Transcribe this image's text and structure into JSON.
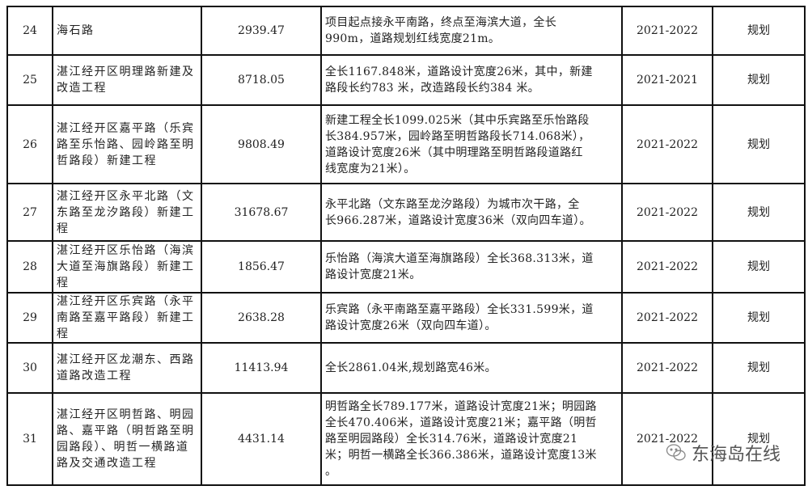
{
  "rows": [
    {
      "no": "24",
      "name": [
        "海石路"
      ],
      "amount": "2939.47",
      "desc": [
        "项目起点接永平南路，终点至海滨大道，全长",
        "990m，道路规划红线宽度21m。"
      ],
      "period": "2021-2022",
      "status": "规划"
    },
    {
      "no": "25",
      "name": [
        "湛江经开区明理路新建及",
        "改造工程"
      ],
      "amount": "8718.05",
      "desc": [
        "全长1167.848米，道路设计宽度26米，其中，新建",
        "路段长约783 米，改造路段长约384 米。"
      ],
      "period": "2021-2021",
      "status": "规划"
    },
    {
      "no": "26",
      "name": [
        "湛江经开区嘉平路（乐宾",
        "路至乐怡路、园岭路至明",
        "哲路段）新建工程"
      ],
      "amount": "9808.49",
      "desc": [
        "新建工程全长1099.025米（其中乐宾路至乐怡路段",
        "长384.957米，园岭路至明哲路段长714.068米），",
        "道路设计宽度26米（其中明理路至明哲路段道路红",
        "线宽度为21米）。"
      ],
      "period": "2021-2022",
      "status": "规划"
    },
    {
      "no": "27",
      "name": [
        "湛江经开区永平北路（文",
        "东路至龙汐路段）新建工",
        "程"
      ],
      "amount": "31678.67",
      "desc": [
        "永平北路（文东路至龙汐路段）为城市次干路，全",
        "长966.287米，道路设计宽度36米（双向四车道）。"
      ],
      "period": "2021-2022",
      "status": "规划"
    },
    {
      "no": "28",
      "name": [
        "湛江经开区乐怡路（海滨",
        "大道至海旗路段）新建工",
        "程"
      ],
      "amount": "1856.47",
      "desc": [
        "乐怡路（海滨大道至海旗路段）全长368.313米，道",
        "路设计宽度21米。"
      ],
      "period": "2021-2022",
      "status": "规划"
    },
    {
      "no": "29",
      "name": [
        "湛江经开区乐宾路（永平",
        "南路至嘉平路段）新建工",
        "程"
      ],
      "amount": "2638.28",
      "desc": [
        "乐宾路（永平南路至嘉平路段）全长331.599米，道",
        "路设计宽度26米（双向四车道）。"
      ],
      "period": "2021-2022",
      "status": "规划"
    },
    {
      "no": "30",
      "name": [
        "湛江经开区龙潮东、西路",
        "道路改造工程"
      ],
      "amount": "11413.94",
      "desc": [
        "全长2861.04米,规划路宽46米。"
      ],
      "period": "2021-2022",
      "status": "规划"
    },
    {
      "no": "31",
      "name": [
        "湛江经开区明哲路、明园",
        "路、嘉平路（明哲路至明",
        "园路段）、明哲一横路道",
        "路及交通改造工程"
      ],
      "amount": "4431.14",
      "desc": [
        "明哲路全长789.177米，道路设计宽度21米；明园路",
        "全长470.406米，道路设计宽度21米；嘉平路（明哲",
        "路至明园路段）全长314.76米，道路设计宽度21",
        "米；明哲一横路全长366.386米，道路设计宽度13米",
        "。"
      ],
      "period": "2021-2022",
      "status": "规划"
    }
  ],
  "watermark": {
    "text": "东海岛在线",
    "icon": "wechat-icon"
  }
}
